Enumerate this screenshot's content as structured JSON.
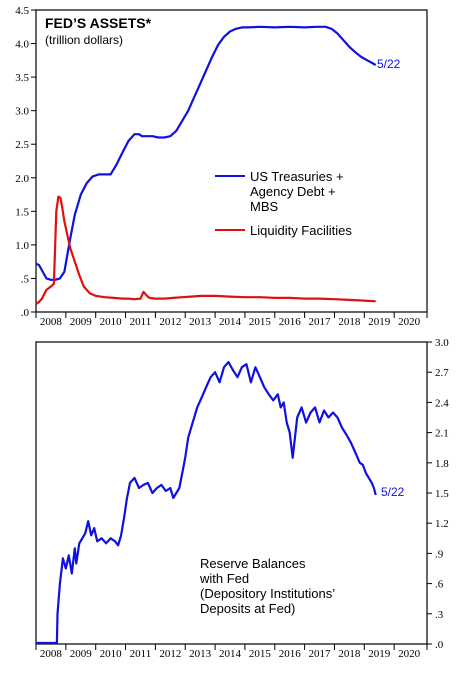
{
  "colors": {
    "blue": "#1010e0",
    "red": "#e01010",
    "frame": "#000000"
  },
  "chart_data": [
    {
      "type": "line",
      "title": "FED’S ASSETS*",
      "subtitle": "(trillion dollars)",
      "ylim": [
        0,
        4.5
      ],
      "yticks": [
        ".0",
        ".5",
        "1.0",
        "1.5",
        "2.0",
        "2.5",
        "3.0",
        "3.5",
        "4.0",
        "4.5"
      ],
      "y_axis_side": "left",
      "xlim": [
        2008.0,
        2021.1
      ],
      "xticks": [
        "2008",
        "2009",
        "2010",
        "2011",
        "2012",
        "2013",
        "2014",
        "2015",
        "2016",
        "2017",
        "2018",
        "2019",
        "2020"
      ],
      "grid": false,
      "legend_position": "center-right",
      "end_label": "5/22",
      "series": [
        {
          "name": "US Treasuries + Agency Debt + MBS",
          "legend_lines": [
            "US Treasuries +",
            "Agency Debt +",
            "MBS"
          ],
          "color": "#1010e0",
          "x": [
            2008.0,
            2008.1,
            2008.2,
            2008.35,
            2008.5,
            2008.65,
            2008.8,
            2008.95,
            2009.05,
            2009.15,
            2009.3,
            2009.5,
            2009.7,
            2009.9,
            2010.1,
            2010.3,
            2010.5,
            2010.7,
            2010.9,
            2011.1,
            2011.3,
            2011.45,
            2011.55,
            2011.7,
            2011.9,
            2012.1,
            2012.3,
            2012.5,
            2012.7,
            2012.9,
            2013.1,
            2013.3,
            2013.5,
            2013.7,
            2013.9,
            2014.1,
            2014.3,
            2014.5,
            2014.7,
            2014.9,
            2015.1,
            2015.5,
            2016.0,
            2016.5,
            2017.0,
            2017.4,
            2017.7,
            2017.9,
            2018.1,
            2018.3,
            2018.5,
            2018.7,
            2018.9,
            2019.1,
            2019.38
          ],
          "y": [
            0.72,
            0.7,
            0.62,
            0.5,
            0.48,
            0.48,
            0.5,
            0.6,
            0.85,
            1.1,
            1.45,
            1.75,
            1.92,
            2.02,
            2.05,
            2.05,
            2.05,
            2.2,
            2.38,
            2.55,
            2.65,
            2.65,
            2.62,
            2.62,
            2.62,
            2.6,
            2.6,
            2.62,
            2.7,
            2.85,
            3.0,
            3.2,
            3.4,
            3.6,
            3.8,
            3.98,
            4.1,
            4.18,
            4.22,
            4.24,
            4.24,
            4.25,
            4.24,
            4.25,
            4.24,
            4.25,
            4.25,
            4.22,
            4.15,
            4.05,
            3.95,
            3.87,
            3.8,
            3.75,
            3.68
          ]
        },
        {
          "name": "Liquidity Facilities",
          "legend_lines": [
            "Liquidity Facilities"
          ],
          "color": "#e01010",
          "x": [
            2008.0,
            2008.1,
            2008.2,
            2008.35,
            2008.5,
            2008.6,
            2008.68,
            2008.75,
            2008.82,
            2008.88,
            2008.95,
            2009.05,
            2009.15,
            2009.3,
            2009.45,
            2009.6,
            2009.8,
            2010.0,
            2010.3,
            2010.6,
            2010.9,
            2011.1,
            2011.3,
            2011.5,
            2011.6,
            2011.7,
            2011.8,
            2012.0,
            2012.3,
            2012.6,
            2012.9,
            2013.2,
            2013.5,
            2014.0,
            2014.5,
            2015.0,
            2015.5,
            2016.0,
            2016.5,
            2017.0,
            2017.5,
            2018.0,
            2018.5,
            2019.0,
            2019.38
          ],
          "y": [
            0.12,
            0.15,
            0.2,
            0.33,
            0.38,
            0.42,
            1.5,
            1.72,
            1.7,
            1.55,
            1.35,
            1.15,
            0.95,
            0.75,
            0.55,
            0.38,
            0.28,
            0.24,
            0.22,
            0.21,
            0.2,
            0.2,
            0.19,
            0.2,
            0.3,
            0.25,
            0.21,
            0.2,
            0.2,
            0.21,
            0.22,
            0.23,
            0.24,
            0.24,
            0.23,
            0.22,
            0.22,
            0.21,
            0.21,
            0.2,
            0.2,
            0.19,
            0.18,
            0.17,
            0.16
          ]
        }
      ]
    },
    {
      "type": "line",
      "ylim": [
        0,
        3.0
      ],
      "yticks": [
        ".0",
        ".3",
        ".6",
        ".9",
        "1.2",
        "1.5",
        "1.8",
        "2.1",
        "2.4",
        "2.7",
        "3.0"
      ],
      "y_axis_side": "right",
      "xlim": [
        2008.0,
        2021.1
      ],
      "xticks": [
        "2008",
        "2009",
        "2010",
        "2011",
        "2012",
        "2013",
        "2014",
        "2015",
        "2016",
        "2017",
        "2018",
        "2019",
        "2020"
      ],
      "grid": false,
      "annotation_lines": [
        "Reserve Balances",
        "with Fed",
        "(Depository Institutions’",
        "Deposits at Fed)"
      ],
      "end_label": "5/22",
      "series": [
        {
          "color": "#1010e0",
          "x": [
            2008.0,
            2008.3,
            2008.6,
            2008.7,
            2008.72,
            2008.8,
            2008.9,
            2009.0,
            2009.1,
            2009.2,
            2009.3,
            2009.35,
            2009.45,
            2009.55,
            2009.65,
            2009.75,
            2009.85,
            2009.95,
            2010.05,
            2010.2,
            2010.35,
            2010.5,
            2010.65,
            2010.75,
            2010.85,
            2010.95,
            2011.05,
            2011.15,
            2011.3,
            2011.45,
            2011.6,
            2011.75,
            2011.9,
            2012.05,
            2012.2,
            2012.35,
            2012.5,
            2012.6,
            2012.7,
            2012.8,
            2012.9,
            2013.0,
            2013.1,
            2013.25,
            2013.4,
            2013.55,
            2013.7,
            2013.85,
            2014.0,
            2014.15,
            2014.3,
            2014.45,
            2014.6,
            2014.75,
            2014.9,
            2015.05,
            2015.2,
            2015.35,
            2015.5,
            2015.65,
            2015.8,
            2015.95,
            2016.1,
            2016.2,
            2016.3,
            2016.4,
            2016.5,
            2016.6,
            2016.75,
            2016.9,
            2017.05,
            2017.2,
            2017.35,
            2017.5,
            2017.65,
            2017.8,
            2017.95,
            2018.1,
            2018.25,
            2018.4,
            2018.55,
            2018.7,
            2018.85,
            2018.95,
            2019.05,
            2019.15,
            2019.25,
            2019.32,
            2019.38
          ],
          "y": [
            0.01,
            0.01,
            0.01,
            0.01,
            0.3,
            0.6,
            0.85,
            0.75,
            0.88,
            0.7,
            0.95,
            0.8,
            1.0,
            1.05,
            1.1,
            1.22,
            1.08,
            1.15,
            1.02,
            1.05,
            1.0,
            1.05,
            1.02,
            0.98,
            1.08,
            1.25,
            1.45,
            1.6,
            1.65,
            1.55,
            1.58,
            1.6,
            1.5,
            1.55,
            1.58,
            1.52,
            1.55,
            1.45,
            1.5,
            1.55,
            1.7,
            1.85,
            2.05,
            2.2,
            2.35,
            2.45,
            2.55,
            2.65,
            2.7,
            2.6,
            2.75,
            2.8,
            2.72,
            2.65,
            2.75,
            2.78,
            2.6,
            2.75,
            2.65,
            2.55,
            2.48,
            2.42,
            2.48,
            2.35,
            2.4,
            2.2,
            2.1,
            1.85,
            2.25,
            2.35,
            2.2,
            2.3,
            2.35,
            2.2,
            2.32,
            2.25,
            2.3,
            2.25,
            2.15,
            2.08,
            2.0,
            1.9,
            1.8,
            1.78,
            1.7,
            1.65,
            1.6,
            1.55,
            1.48
          ]
        }
      ]
    }
  ]
}
